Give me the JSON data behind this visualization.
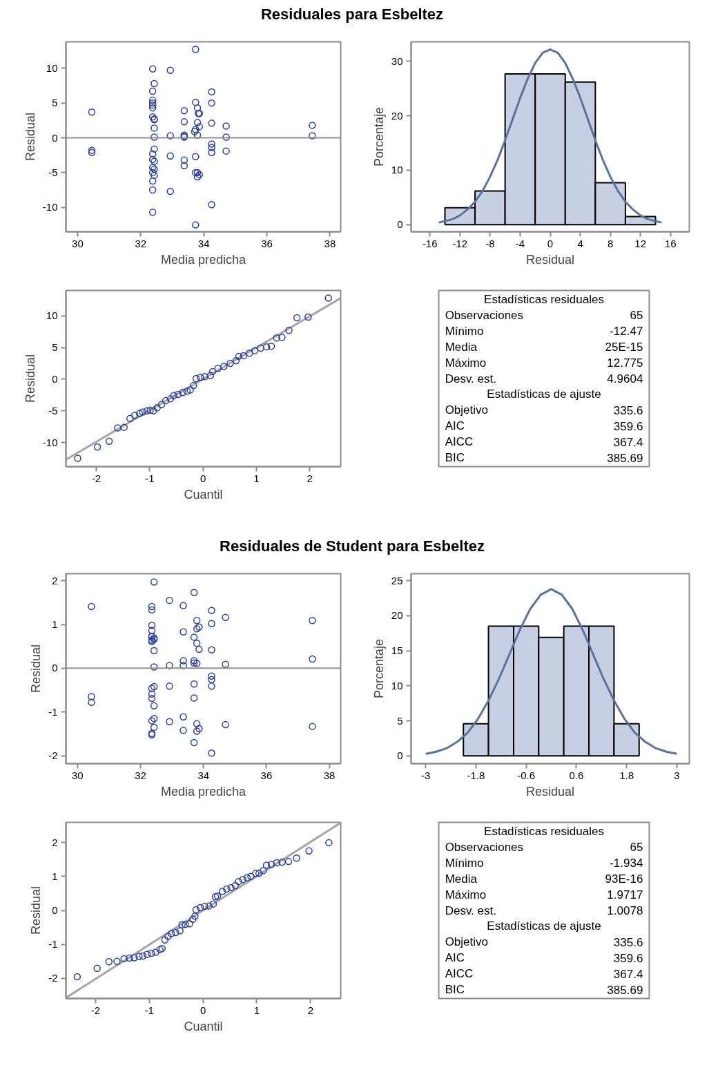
{
  "chart_data": [
    {
      "type": "scatter",
      "title": "Residuales para Esbeltez",
      "xlabel": "Media predicha",
      "ylabel": "Residual",
      "marker": "circle",
      "color": "#2b3f9e",
      "x": [
        30.45,
        30.45,
        30.45,
        32.38,
        32.38,
        32.38,
        32.38,
        32.38,
        32.38,
        32.38,
        32.38,
        32.38,
        32.38,
        32.38,
        32.38,
        32.38,
        32.38,
        32.43,
        32.43,
        32.43,
        32.43,
        32.43,
        32.43,
        32.43,
        32.43,
        32.43,
        32.94,
        32.94,
        32.94,
        32.94,
        33.38,
        33.38,
        33.38,
        33.38,
        33.38,
        33.38,
        33.38,
        33.74,
        33.74,
        33.74,
        33.74,
        33.74,
        33.74,
        33.8,
        33.8,
        33.8,
        33.8,
        33.8,
        33.83,
        33.86,
        33.86,
        33.86,
        33.71,
        34.25,
        34.25,
        34.25,
        34.25,
        34.25,
        34.25,
        34.25,
        34.71,
        34.71,
        34.71,
        37.44,
        37.44
      ],
      "values": [
        3.7,
        -1.8,
        -2.1,
        9.9,
        6.7,
        5.4,
        5.0,
        4.7,
        4.3,
        3.0,
        -2.3,
        -3.1,
        -4.3,
        -5.0,
        -6.2,
        -7.5,
        -10.7,
        7.8,
        2.7,
        2.6,
        1.4,
        0.1,
        -1.6,
        -3.4,
        -4.5,
        -5.4,
        9.7,
        0.3,
        -2.6,
        -7.7,
        3.9,
        2.3,
        0.4,
        0.2,
        0.1,
        -3.2,
        -4.0,
        12.7,
        5.1,
        1.2,
        -2.7,
        -5.0,
        -12.5,
        4.3,
        2.2,
        0.4,
        -5.6,
        -5.0,
        3.5,
        3.5,
        1.6,
        -5.3,
        0.9,
        6.6,
        5.0,
        2.1,
        -0.9,
        -1.4,
        -2.1,
        -9.6,
        1.7,
        0.1,
        -1.9,
        1.8,
        0.3
      ],
      "xlim": [
        29.63,
        38.34
      ],
      "xticks": [
        30,
        32,
        34,
        36,
        38
      ],
      "ylim": [
        -13.5,
        13.8
      ],
      "yticks": [
        -10,
        -5,
        0,
        5,
        10
      ],
      "ref_lines": [
        {
          "axis": "y",
          "value": 0,
          "color": "#909090"
        }
      ]
    },
    {
      "type": "histogram",
      "xlabel": "Residual",
      "ylabel": "Porcentaje",
      "color": "#c6d0e2",
      "bins": [
        -14,
        -10,
        -6,
        -2,
        2,
        6,
        10,
        14
      ],
      "values": [
        3.1,
        6.2,
        27.7,
        27.7,
        26.2,
        7.7,
        1.5
      ],
      "series": [
        {
          "type": "line",
          "color": "#5a7398",
          "x": [
            -14.8,
            -13,
            -12,
            -11,
            -10,
            -9,
            -8,
            -7,
            -6,
            -5,
            -4,
            -3,
            -2,
            -1,
            0,
            1,
            2,
            3,
            4,
            5,
            6,
            7,
            8,
            9,
            10,
            11,
            12,
            13,
            14.8
          ],
          "values": [
            0.4,
            1.0,
            1.7,
            2.8,
            4.2,
            6.2,
            8.8,
            11.9,
            15.5,
            19.4,
            23.3,
            26.8,
            29.7,
            31.6,
            32.2,
            31.6,
            29.7,
            26.8,
            23.3,
            19.4,
            15.5,
            11.9,
            8.8,
            6.2,
            4.2,
            2.8,
            1.7,
            1.0,
            0.4
          ]
        }
      ],
      "xlim": [
        -18.5,
        18.5
      ],
      "xticks": [
        -16,
        -12,
        -8,
        -4,
        0,
        4,
        8,
        12,
        16
      ],
      "ylim": [
        -1.3,
        33.6
      ],
      "yticks": [
        0,
        10,
        20,
        30
      ]
    },
    {
      "type": "scatter",
      "xlabel": "Cuantil",
      "ylabel": "Residual",
      "series": [
        {
          "type": "line",
          "marker": "none",
          "color": "#a6a6a6",
          "x": [
            -2.57,
            2.58
          ],
          "values": [
            -12.7,
            12.8
          ]
        },
        {
          "type": "scatter",
          "marker": "circle",
          "color": "#2b3f9e",
          "x": [
            -2.35,
            -1.98,
            -1.76,
            -1.6,
            -1.48,
            -1.37,
            -1.28,
            -1.19,
            -1.13,
            -1.05,
            -0.99,
            -0.93,
            -0.86,
            -0.78,
            -0.7,
            -0.61,
            -0.55,
            -0.47,
            -0.38,
            -0.3,
            -0.24,
            -0.18,
            -0.13,
            -0.05,
            0.03,
            0.14,
            0.18,
            0.28,
            0.39,
            0.51,
            0.62,
            0.67,
            0.76,
            0.87,
            0.97,
            1.08,
            1.19,
            1.28,
            1.38,
            1.48,
            1.61,
            1.76,
            1.97,
            2.35
          ],
          "values": [
            -12.5,
            -10.7,
            -9.8,
            -7.7,
            -7.6,
            -6.2,
            -5.7,
            -5.4,
            -5.2,
            -5.0,
            -4.9,
            -5.0,
            -4.5,
            -4.0,
            -3.4,
            -3.1,
            -2.6,
            -2.4,
            -2.1,
            -1.9,
            -1.7,
            -1.0,
            0.1,
            0.3,
            0.4,
            0.6,
            1.2,
            1.7,
            2.0,
            2.5,
            2.9,
            3.6,
            3.7,
            4.1,
            4.5,
            4.9,
            5.1,
            5.2,
            6.5,
            6.6,
            7.7,
            9.7,
            9.8,
            12.8
          ]
        }
      ],
      "xlim": [
        -2.57,
        2.58
      ],
      "xticks": [
        -2,
        -1,
        0,
        1,
        2
      ],
      "ylim": [
        -13.8,
        14.0
      ],
      "yticks": [
        -10,
        -5,
        0,
        5,
        10
      ]
    },
    {
      "type": "other",
      "categories": [
        null,
        "Observaciones",
        "Mínimo",
        "Media",
        "Máximo",
        "Desv. est.",
        null,
        "Objetivo",
        "AIC",
        "AICC",
        "BIC"
      ],
      "value_labels": [
        null,
        "65",
        "-12.47",
        "25E-15",
        "12.775",
        "4.9604",
        null,
        "335.6",
        "359.6",
        "367.4",
        "385.69"
      ],
      "annotations": [
        "Estadísticas residuales",
        "Estadísticas de ajuste"
      ]
    },
    {
      "type": "scatter",
      "title": "Residuales de Student para Esbeltez",
      "xlabel": "Media predicha",
      "ylabel": "Residual",
      "marker": "circle",
      "color": "#2b3f9e",
      "x": [
        30.44,
        30.44,
        30.44,
        32.36,
        32.36,
        32.36,
        32.36,
        32.36,
        32.36,
        32.36,
        32.36,
        32.36,
        32.36,
        32.36,
        32.36,
        32.36,
        32.36,
        32.43,
        32.43,
        32.43,
        32.43,
        32.43,
        32.43,
        32.43,
        32.43,
        32.43,
        32.92,
        32.92,
        32.92,
        32.92,
        33.36,
        33.36,
        33.36,
        33.36,
        33.36,
        33.36,
        33.7,
        33.7,
        33.7,
        33.7,
        33.7,
        33.7,
        33.7,
        33.79,
        33.79,
        33.79,
        33.79,
        33.79,
        33.79,
        33.86,
        33.86,
        33.86,
        34.26,
        34.26,
        34.26,
        34.26,
        34.26,
        34.26,
        34.26,
        34.7,
        34.7,
        34.7,
        37.46,
        37.46,
        37.46
      ],
      "values": [
        1.41,
        -0.65,
        -0.78,
        1.41,
        1.33,
        0.98,
        0.86,
        0.73,
        0.64,
        0.61,
        0.72,
        -0.46,
        -0.59,
        -0.69,
        -1.2,
        -1.49,
        -1.52,
        1.97,
        0.69,
        0.66,
        0.4,
        0.03,
        -0.42,
        -0.86,
        -1.15,
        -1.35,
        1.55,
        0.06,
        -0.41,
        -1.22,
        1.43,
        0.83,
        0.17,
        0.06,
        -1.11,
        -1.42,
        1.73,
        0.71,
        0.17,
        0.12,
        -0.36,
        -0.68,
        -1.7,
        1.09,
        0.9,
        0.57,
        0.11,
        -1.27,
        -1.44,
        0.94,
        0.43,
        -1.38,
        1.32,
        1.02,
        0.42,
        -0.18,
        -0.26,
        -0.41,
        -1.94,
        1.16,
        0.09,
        -1.29,
        1.09,
        0.21,
        -1.33
      ],
      "xlim": [
        29.63,
        38.36
      ],
      "xticks": [
        30,
        32,
        34,
        36,
        38
      ],
      "ylim": [
        -2.18,
        2.16
      ],
      "yticks": [
        -2,
        -1,
        0,
        1,
        2
      ],
      "ref_lines": [
        {
          "axis": "y",
          "value": 0,
          "color": "#909090"
        }
      ]
    },
    {
      "type": "histogram",
      "xlabel": "Residual",
      "ylabel": "Porcentaje",
      "color": "#c6d0e2",
      "bins": [
        -2.1,
        -1.5,
        -0.9,
        -0.3,
        0.3,
        0.9,
        1.5,
        2.1
      ],
      "values": [
        4.6,
        18.5,
        18.5,
        16.9,
        18.5,
        18.5,
        4.6
      ],
      "series": [
        {
          "type": "line",
          "color": "#5a7398",
          "x": [
            -3,
            -2.75,
            -2.5,
            -2.25,
            -2,
            -1.75,
            -1.5,
            -1.25,
            -1,
            -0.75,
            -0.5,
            -0.25,
            0,
            0.25,
            0.5,
            0.75,
            1,
            1.25,
            1.5,
            1.75,
            2,
            2.25,
            2.5,
            2.75,
            3
          ],
          "values": [
            0.3,
            0.6,
            1.1,
            2.0,
            3.3,
            5.3,
            7.9,
            11.0,
            14.5,
            18.0,
            21.0,
            23.0,
            23.8,
            23.0,
            21.0,
            18.0,
            14.5,
            11.0,
            7.9,
            5.3,
            3.3,
            2.0,
            1.1,
            0.6,
            0.3
          ]
        }
      ],
      "xlim": [
        -3.35,
        3.3
      ],
      "xticks": [
        -3,
        -1.8,
        -0.6,
        0.6,
        1.8,
        3
      ],
      "ylim": [
        -1.1,
        26.0
      ],
      "yticks": [
        0,
        5,
        10,
        15,
        20,
        25
      ]
    },
    {
      "type": "scatter",
      "xlabel": "Cuantil",
      "ylabel": "Residual",
      "series": [
        {
          "type": "line",
          "marker": "none",
          "color": "#a6a6a6",
          "x": [
            -2.55,
            2.56
          ],
          "values": [
            -2.57,
            2.58
          ]
        },
        {
          "type": "scatter",
          "marker": "circle",
          "color": "#2b3f9e",
          "x": [
            -2.34,
            -1.97,
            -1.75,
            -1.6,
            -1.47,
            -1.37,
            -1.28,
            -1.19,
            -1.12,
            -1.04,
            -0.96,
            -0.88,
            -0.8,
            -0.76,
            -0.71,
            -0.65,
            -0.59,
            -0.51,
            -0.43,
            -0.39,
            -0.33,
            -0.25,
            -0.19,
            -0.15,
            -0.13,
            -0.05,
            0.03,
            0.11,
            0.19,
            0.23,
            0.27,
            0.36,
            0.44,
            0.52,
            0.6,
            0.66,
            0.74,
            0.82,
            0.89,
            0.98,
            1.04,
            1.12,
            1.18,
            1.27,
            1.37,
            1.47,
            1.59,
            1.74,
            1.97,
            2.34
          ],
          "values": [
            -1.95,
            -1.7,
            -1.51,
            -1.5,
            -1.42,
            -1.4,
            -1.39,
            -1.35,
            -1.34,
            -1.29,
            -1.26,
            -1.23,
            -1.15,
            -1.12,
            -0.87,
            -0.76,
            -0.68,
            -0.65,
            -0.6,
            -0.42,
            -0.41,
            -0.39,
            -0.26,
            -0.17,
            0.02,
            0.08,
            0.12,
            0.13,
            0.19,
            0.4,
            0.42,
            0.56,
            0.63,
            0.67,
            0.73,
            0.85,
            0.91,
            0.96,
            1.0,
            1.09,
            1.09,
            1.17,
            1.33,
            1.35,
            1.4,
            1.42,
            1.44,
            1.54,
            1.75,
            1.99
          ]
        }
      ],
      "xlim": [
        -2.55,
        2.56
      ],
      "xticks": [
        -2,
        -1,
        0,
        1,
        2
      ],
      "ylim": [
        -2.59,
        2.59
      ],
      "yticks": [
        -2,
        -1,
        0,
        1,
        2
      ]
    },
    {
      "type": "other",
      "categories": [
        null,
        "Observaciones",
        "Mínimo",
        "Media",
        "Máximo",
        "Desv. est.",
        null,
        "Objetivo",
        "AIC",
        "AICC",
        "BIC"
      ],
      "value_labels": [
        null,
        "65",
        "-1.934",
        "93E-16",
        "1.9717",
        "1.0078",
        null,
        "335.6",
        "359.6",
        "367.4",
        "385.69"
      ],
      "annotations": [
        "Estadísticas residuales",
        "Estadísticas de ajuste"
      ]
    }
  ]
}
